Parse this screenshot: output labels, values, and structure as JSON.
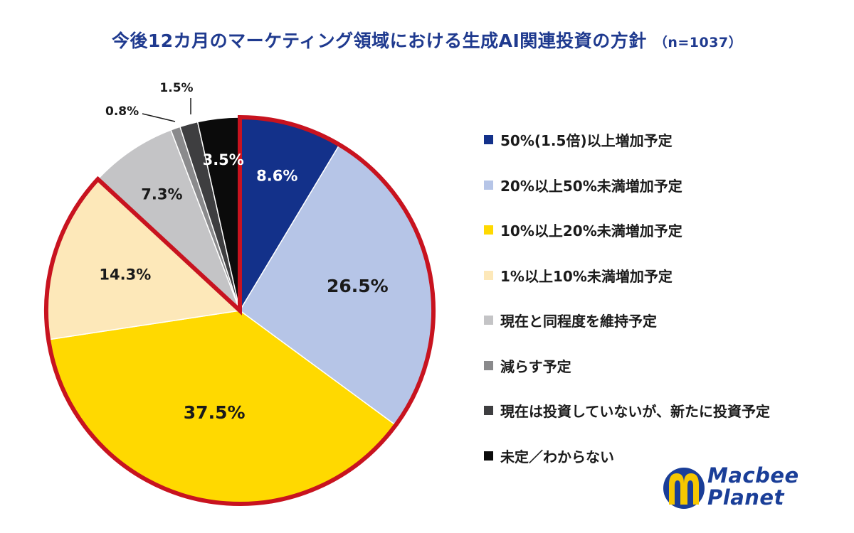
{
  "title": {
    "main": "今後12カ月のマーケティング領域における生成AI関連投資の方針",
    "n": "（n=1037）"
  },
  "chart_data": {
    "type": "pie",
    "categories": [
      "50%(1.5倍)以上増加予定",
      "20%以上50%未満増加予定",
      "10%以上20%未満増加予定",
      "1%以上10%未満増加予定",
      "現在と同程度を維持予定",
      "減らす予定",
      "現在は投資していないが、新たに投資予定",
      "未定／わからない"
    ],
    "values": [
      8.6,
      26.5,
      37.5,
      14.3,
      7.3,
      0.8,
      1.5,
      3.5
    ],
    "data_labels": [
      "8.6%",
      "26.5%",
      "37.5%",
      "14.3%",
      "7.3%",
      "0.8%",
      "1.5%",
      "3.5%"
    ],
    "colors": [
      "#13318a",
      "#b6c5e7",
      "#ffd900",
      "#fde8b9",
      "#c4c4c6",
      "#8a8a8c",
      "#3e3e40",
      "#0b0b0b"
    ],
    "label_colors": [
      "#ffffff",
      "#1a1a1a",
      "#1a1a1a",
      "#1a1a1a",
      "#1a1a1a",
      "#1a1a1a",
      "#1a1a1a",
      "#ffffff"
    ],
    "highlight_color": "#c8131f",
    "highlighted_categories": [
      0,
      1,
      2,
      3
    ],
    "start_angle_deg": 0,
    "direction": "clockwise",
    "legend_position": "right"
  },
  "logo": {
    "line1": "Macbee",
    "line2": "Planet",
    "color": "#1a3e98",
    "accent": "#f6c700"
  }
}
